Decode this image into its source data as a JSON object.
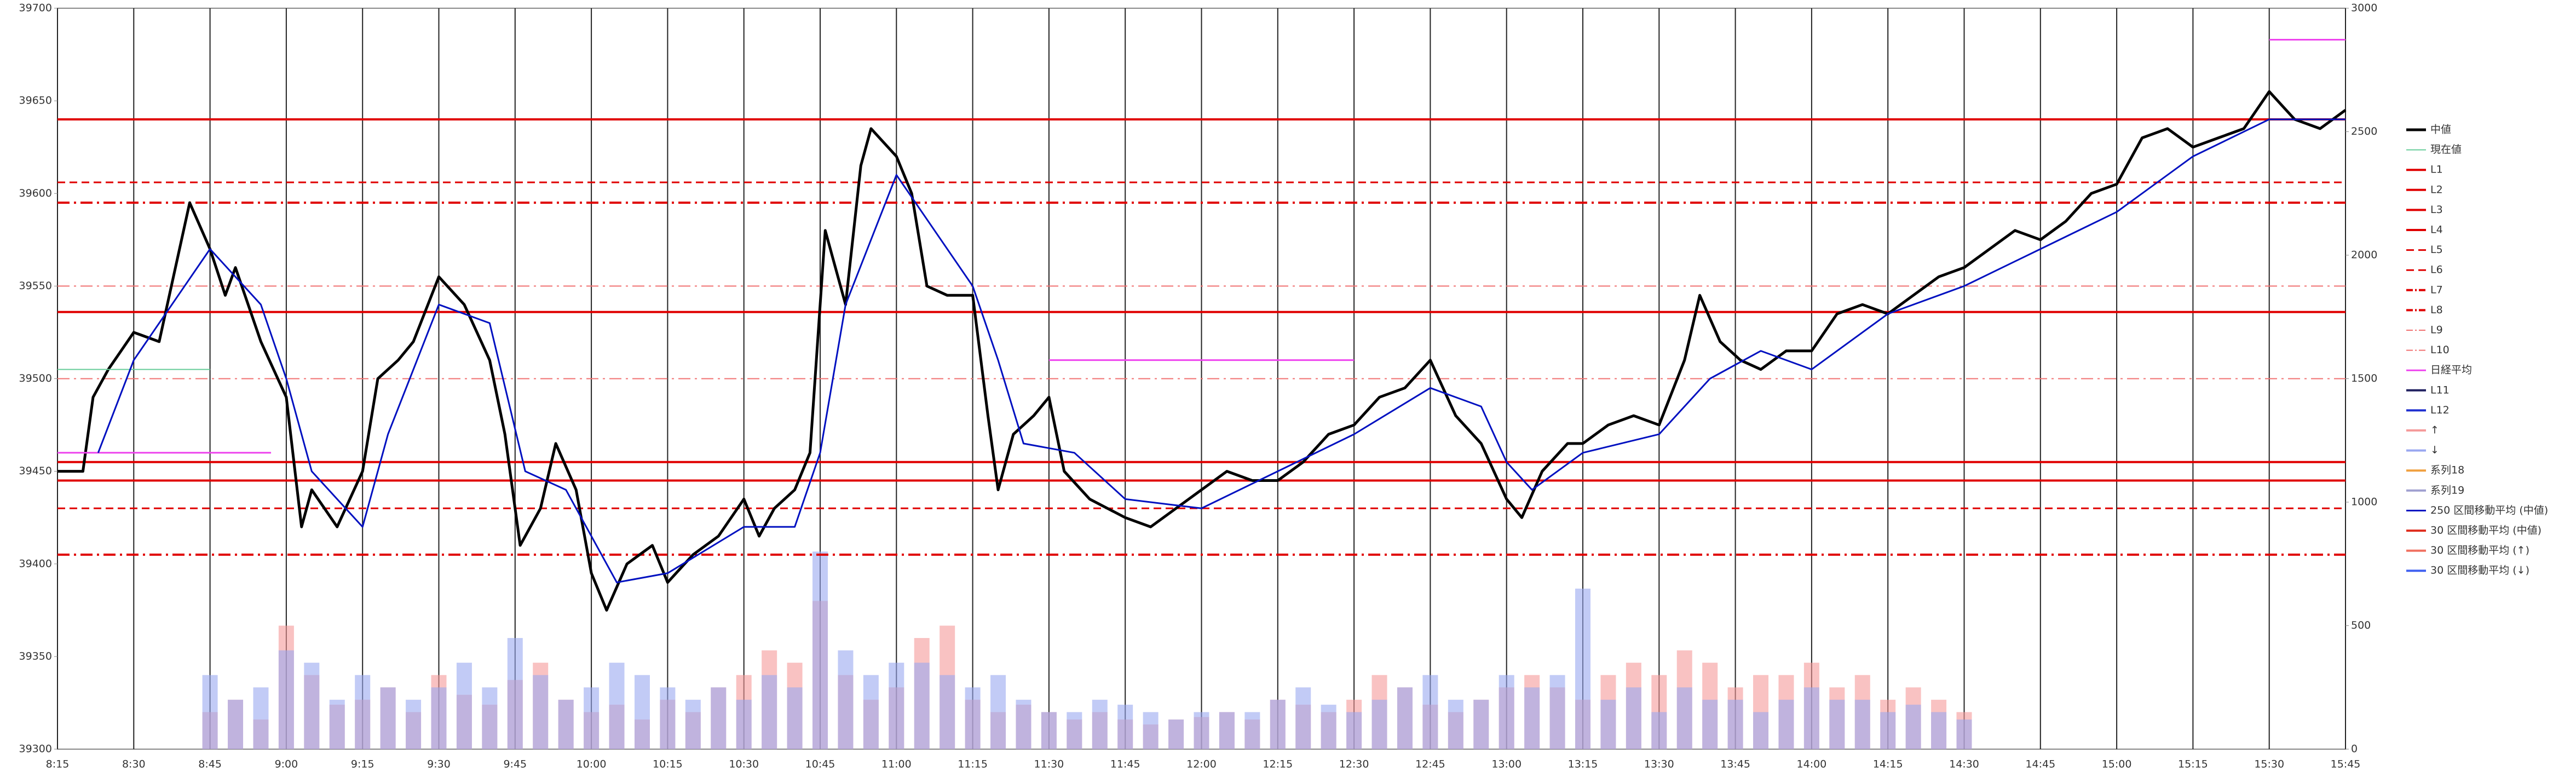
{
  "chart_data": {
    "type": "line",
    "xlim": [
      "8:15",
      "15:45"
    ],
    "xticks": [
      "8:15",
      "8:30",
      "8:45",
      "9:00",
      "9:15",
      "9:30",
      "9:45",
      "10:00",
      "10:15",
      "10:30",
      "10:45",
      "11:00",
      "11:15",
      "11:30",
      "11:45",
      "12:00",
      "12:15",
      "12:30",
      "12:45",
      "13:00",
      "13:15",
      "13:30",
      "13:45",
      "14:00",
      "14:15",
      "14:30",
      "14:45",
      "15:00",
      "15:15",
      "15:30",
      "15:45"
    ],
    "ylim": [
      39300,
      39700
    ],
    "yticks": [
      39300,
      39350,
      39400,
      39450,
      39500,
      39550,
      39600,
      39650,
      39700
    ],
    "y2lim": [
      0,
      3000
    ],
    "y2ticks": [
      0,
      500,
      1000,
      1500,
      2000,
      2500,
      3000
    ],
    "grid": true,
    "series": [
      {
        "name": "中値",
        "kind": "line",
        "color": "#000000",
        "width": 5,
        "x": [
          "8:15",
          "8:20",
          "8:22",
          "8:25",
          "8:30",
          "8:35",
          "8:41",
          "8:45",
          "8:48",
          "8:50",
          "8:55",
          "9:00",
          "9:03",
          "9:05",
          "9:10",
          "9:15",
          "9:18",
          "9:22",
          "9:25",
          "9:30",
          "9:35",
          "9:40",
          "9:43",
          "9:46",
          "9:50",
          "9:53",
          "9:57",
          "10:00",
          "10:03",
          "10:07",
          "10:12",
          "10:15",
          "10:20",
          "10:25",
          "10:30",
          "10:33",
          "10:36",
          "10:40",
          "10:43",
          "10:46",
          "10:50",
          "10:53",
          "10:55",
          "11:00",
          "11:03",
          "11:06",
          "11:10",
          "11:15",
          "11:18",
          "11:20",
          "11:23",
          "11:27",
          "11:30",
          "11:33",
          "11:38",
          "11:45",
          "11:50",
          "11:55",
          "12:00",
          "12:05",
          "12:10",
          "12:15",
          "12:20",
          "12:25",
          "12:30",
          "12:35",
          "12:40",
          "12:45",
          "12:50",
          "12:55",
          "13:00",
          "13:03",
          "13:07",
          "13:12",
          "13:15",
          "13:20",
          "13:25",
          "13:30",
          "13:35",
          "13:38",
          "13:42",
          "13:46",
          "13:50",
          "13:55",
          "14:00",
          "14:05",
          "14:10",
          "14:15",
          "14:20",
          "14:25",
          "14:30",
          "14:35",
          "14:40",
          "14:45",
          "14:50",
          "14:55",
          "15:00",
          "15:05",
          "15:10",
          "15:15",
          "15:20",
          "15:25",
          "15:30",
          "15:35",
          "15:40",
          "15:45"
        ],
        "values": [
          39450,
          39450,
          39490,
          39505,
          39525,
          39520,
          39595,
          39570,
          39545,
          39560,
          39520,
          39490,
          39420,
          39440,
          39420,
          39450,
          39500,
          39510,
          39520,
          39555,
          39540,
          39510,
          39470,
          39410,
          39430,
          39465,
          39440,
          39395,
          39375,
          39400,
          39410,
          39390,
          39405,
          39415,
          39435,
          39415,
          39430,
          39440,
          39460,
          39580,
          39540,
          39615,
          39635,
          39620,
          39600,
          39550,
          39545,
          39545,
          39480,
          39440,
          39470,
          39480,
          39490,
          39450,
          39435,
          39425,
          39420,
          39430,
          39440,
          39450,
          39445,
          39445,
          39455,
          39470,
          39475,
          39490,
          39495,
          39510,
          39480,
          39465,
          39435,
          39425,
          39450,
          39465,
          39465,
          39475,
          39480,
          39475,
          39510,
          39545,
          39520,
          39510,
          39505,
          39515,
          39515,
          39535,
          39540,
          39535,
          39545,
          39555,
          39560,
          39570,
          39580,
          39575,
          39585,
          39600,
          39605,
          39630,
          39635,
          39625,
          39630,
          39635,
          39655,
          39640,
          39635,
          39645
        ]
      },
      {
        "name": "現在値",
        "kind": "line",
        "color": "#66cc99",
        "width": 2,
        "x": [
          "8:15",
          "8:45"
        ],
        "values": [
          39505,
          39505
        ]
      },
      {
        "name": "L1",
        "kind": "hline",
        "color": "#e00000",
        "dash": "solid",
        "width": 4,
        "values": [
          39640
        ]
      },
      {
        "name": "L2",
        "kind": "hline",
        "color": "#e00000",
        "dash": "solid",
        "width": 4,
        "values": [
          39536
        ]
      },
      {
        "name": "L3",
        "kind": "hline",
        "color": "#e00000",
        "dash": "solid",
        "width": 4,
        "values": [
          39455
        ]
      },
      {
        "name": "L4",
        "kind": "hline",
        "color": "#e00000",
        "dash": "solid",
        "width": 4,
        "values": [
          39445
        ]
      },
      {
        "name": "L5",
        "kind": "hline",
        "color": "#e00000",
        "dash": "dash",
        "width": 3,
        "values": [
          39606
        ]
      },
      {
        "name": "L6",
        "kind": "hline",
        "color": "#e00000",
        "dash": "dash",
        "width": 3,
        "values": [
          39430
        ]
      },
      {
        "name": "L7",
        "kind": "hline",
        "color": "#e00000",
        "dash": "dashdot",
        "width": 4,
        "values": [
          39595
        ]
      },
      {
        "name": "L8",
        "kind": "hline",
        "color": "#e00000",
        "dash": "dashdot",
        "width": 4,
        "values": [
          39405
        ]
      },
      {
        "name": "L9",
        "kind": "hline",
        "color": "#f07070",
        "dash": "dashdot",
        "width": 2,
        "values": [
          39550
        ]
      },
      {
        "name": "L10",
        "kind": "hline",
        "color": "#f07070",
        "dash": "dashdot",
        "width": 2,
        "values": [
          39500
        ]
      },
      {
        "name": "日経平均",
        "kind": "line",
        "color": "#ee44ee",
        "width": 3,
        "x": [
          "8:15",
          "8:57",
          "9:00",
          "11:30",
          "12:30",
          "12:35",
          "15:30",
          "15:45"
        ],
        "values": [
          39460,
          39460,
          null,
          39510,
          39510,
          null,
          39683,
          39683
        ]
      },
      {
        "name": "L11",
        "kind": "legend",
        "color": "#202060"
      },
      {
        "name": "L12",
        "kind": "legend",
        "color": "#2030d0"
      },
      {
        "name": "↑",
        "kind": "bar",
        "axis": "y2",
        "color": "#f59a9a",
        "x": [
          "8:45",
          "8:50",
          "8:55",
          "9:00",
          "9:05",
          "9:10",
          "9:15",
          "9:20",
          "9:25",
          "9:30",
          "9:35",
          "9:40",
          "9:45",
          "9:50",
          "9:55",
          "10:00",
          "10:05",
          "10:10",
          "10:15",
          "10:20",
          "10:25",
          "10:30",
          "10:35",
          "10:40",
          "10:45",
          "10:50",
          "10:55",
          "11:00",
          "11:05",
          "11:10",
          "11:15",
          "11:20",
          "11:25",
          "11:30",
          "11:35",
          "11:40",
          "11:45",
          "11:50",
          "11:55",
          "12:00",
          "12:05",
          "12:10",
          "12:15",
          "12:20",
          "12:25",
          "12:30",
          "12:35",
          "12:40",
          "12:45",
          "12:50",
          "12:55",
          "13:00",
          "13:05",
          "13:10",
          "13:15",
          "13:20",
          "13:25",
          "13:30",
          "13:35",
          "13:40",
          "13:45",
          "13:50",
          "13:55",
          "14:00",
          "14:05",
          "14:10",
          "14:15",
          "14:20",
          "14:25",
          "14:30"
        ],
        "values": [
          150,
          200,
          120,
          500,
          300,
          180,
          200,
          250,
          150,
          300,
          220,
          180,
          280,
          350,
          200,
          150,
          180,
          120,
          200,
          150,
          250,
          300,
          400,
          350,
          600,
          300,
          200,
          250,
          450,
          500,
          200,
          150,
          180,
          150,
          120,
          150,
          120,
          100,
          120,
          130,
          150,
          120,
          200,
          180,
          150,
          200,
          300,
          250,
          180,
          150,
          200,
          250,
          300,
          250,
          200,
          300,
          350,
          300,
          400,
          350,
          250,
          300,
          300,
          350,
          250,
          300,
          200,
          250,
          200,
          150
        ]
      },
      {
        "name": "↓",
        "kind": "bar",
        "axis": "y2",
        "color": "#9aa8f0",
        "x": [
          "8:45",
          "8:50",
          "8:55",
          "9:00",
          "9:05",
          "9:10",
          "9:15",
          "9:20",
          "9:25",
          "9:30",
          "9:35",
          "9:40",
          "9:45",
          "9:50",
          "9:55",
          "10:00",
          "10:05",
          "10:10",
          "10:15",
          "10:20",
          "10:25",
          "10:30",
          "10:35",
          "10:40",
          "10:45",
          "10:50",
          "10:55",
          "11:00",
          "11:05",
          "11:10",
          "11:15",
          "11:20",
          "11:25",
          "11:30",
          "11:35",
          "11:40",
          "11:45",
          "11:50",
          "11:55",
          "12:00",
          "12:05",
          "12:10",
          "12:15",
          "12:20",
          "12:25",
          "12:30",
          "12:35",
          "12:40",
          "12:45",
          "12:50",
          "12:55",
          "13:00",
          "13:05",
          "13:10",
          "13:15",
          "13:20",
          "13:25",
          "13:30",
          "13:35",
          "13:40",
          "13:45",
          "13:50",
          "13:55",
          "14:00",
          "14:05",
          "14:10",
          "14:15",
          "14:20",
          "14:25",
          "14:30"
        ],
        "values": [
          300,
          200,
          250,
          400,
          350,
          200,
          300,
          250,
          200,
          250,
          350,
          250,
          450,
          300,
          200,
          250,
          350,
          300,
          250,
          200,
          250,
          200,
          300,
          250,
          800,
          400,
          300,
          350,
          350,
          300,
          250,
          300,
          200,
          150,
          150,
          200,
          180,
          150,
          120,
          150,
          150,
          150,
          200,
          250,
          180,
          150,
          200,
          250,
          300,
          200,
          200,
          300,
          250,
          300,
          650,
          200,
          250,
          150,
          250,
          200,
          200,
          150,
          200,
          250,
          200,
          200,
          150,
          180,
          150,
          120
        ]
      },
      {
        "name": "系列18",
        "kind": "legend",
        "color": "#f0a040"
      },
      {
        "name": "系列19",
        "kind": "legend",
        "color": "#a0a0d0"
      },
      {
        "name": "250 区間移動平均 (中値)",
        "kind": "line",
        "color": "#0010c0",
        "width": 3,
        "x": [
          "8:23",
          "8:30",
          "8:45",
          "8:55",
          "9:00",
          "9:05",
          "9:15",
          "9:20",
          "9:30",
          "9:40",
          "9:47",
          "9:55",
          "10:05",
          "10:15",
          "10:30",
          "10:40",
          "10:45",
          "10:50",
          "11:00",
          "11:05",
          "11:15",
          "11:20",
          "11:25",
          "11:35",
          "11:45",
          "12:00",
          "12:15",
          "12:30",
          "12:45",
          "12:55",
          "13:00",
          "13:05",
          "13:15",
          "13:30",
          "13:40",
          "13:50",
          "14:00",
          "14:15",
          "14:30",
          "14:45",
          "15:00",
          "15:15",
          "15:30",
          "15:45"
        ],
        "values": [
          39460,
          39510,
          39570,
          39540,
          39500,
          39450,
          39420,
          39470,
          39540,
          39530,
          39450,
          39440,
          39390,
          39395,
          39420,
          39420,
          39460,
          39540,
          39610,
          39590,
          39550,
          39510,
          39465,
          39460,
          39435,
          39430,
          39450,
          39470,
          39495,
          39485,
          39455,
          39440,
          39460,
          39470,
          39500,
          39515,
          39505,
          39535,
          39550,
          39570,
          39590,
          39620,
          39640,
          39640
        ]
      },
      {
        "name": "30 区間移動平均 (中値)",
        "kind": "legend",
        "color": "#e03020"
      },
      {
        "name": "30 区間移動平均 (↑)",
        "kind": "legend",
        "color": "#f07060"
      },
      {
        "name": "30 区間移動平均 (↓)",
        "kind": "legend",
        "color": "#4060f0"
      }
    ]
  }
}
